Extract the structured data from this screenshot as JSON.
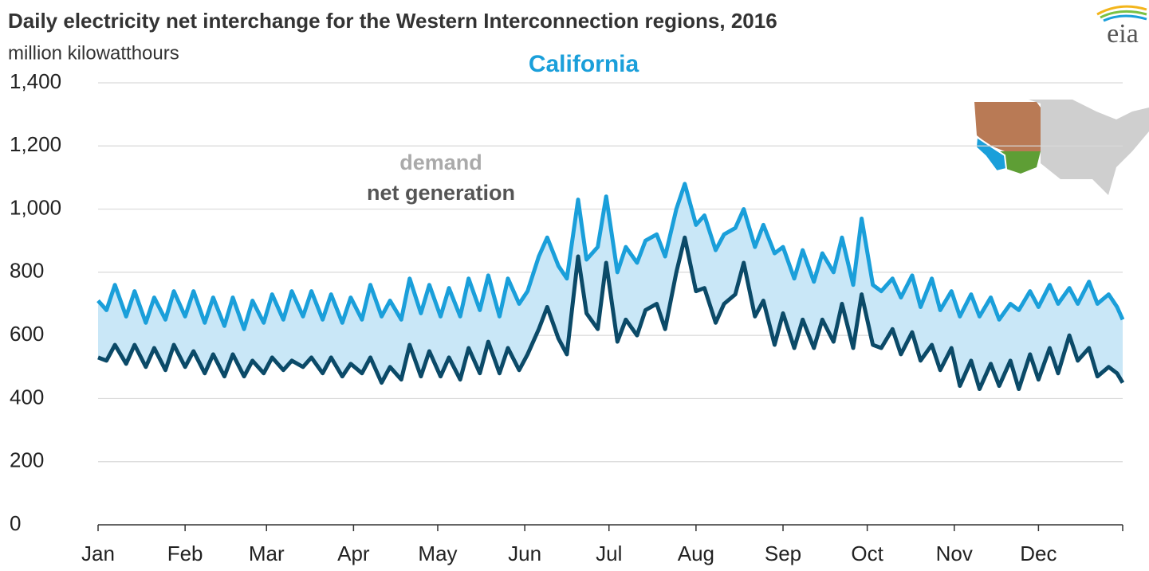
{
  "chart_data": {
    "type": "line",
    "title": "Daily electricity net interchange for the Western Interconnection regions, 2016",
    "subtitle": "million kilowatthours",
    "region": "California",
    "logo": "eia",
    "annotations": [
      "demand",
      "net generation"
    ],
    "x": [
      1,
      4,
      7,
      11,
      14,
      18,
      21,
      25,
      28,
      32,
      35,
      39,
      42,
      46,
      49,
      53,
      56,
      60,
      63,
      67,
      70,
      74,
      77,
      81,
      84,
      88,
      91,
      95,
      98,
      102,
      105,
      109,
      112,
      116,
      119,
      123,
      126,
      130,
      133,
      137,
      140,
      144,
      147,
      151,
      154,
      158,
      161,
      165,
      168,
      172,
      175,
      179,
      182,
      186,
      189,
      193,
      196,
      200,
      203,
      207,
      210,
      214,
      217,
      221,
      224,
      228,
      231,
      235,
      238,
      242,
      245,
      249,
      252,
      256,
      259,
      263,
      266,
      270,
      273,
      277,
      280,
      284,
      287,
      291,
      294,
      298,
      301,
      305,
      308,
      312,
      315,
      319,
      322,
      326,
      329,
      333,
      336,
      340,
      343,
      347,
      350,
      354,
      357,
      361,
      364,
      366
    ],
    "xlim": [
      1,
      366
    ],
    "xticks": [
      {
        "value": 1,
        "label": "Jan"
      },
      {
        "value": 32,
        "label": "Feb"
      },
      {
        "value": 61,
        "label": "Mar"
      },
      {
        "value": 92,
        "label": "Apr"
      },
      {
        "value": 122,
        "label": "May"
      },
      {
        "value": 153,
        "label": "Jun"
      },
      {
        "value": 183,
        "label": "Jul"
      },
      {
        "value": 214,
        "label": "Aug"
      },
      {
        "value": 245,
        "label": "Sep"
      },
      {
        "value": 275,
        "label": "Oct"
      },
      {
        "value": 306,
        "label": "Nov"
      },
      {
        "value": 336,
        "label": "Dec"
      },
      {
        "value": 366,
        "label": ""
      }
    ],
    "ylim": [
      0,
      1400
    ],
    "yticks": [
      0,
      200,
      400,
      600,
      800,
      {
        "value": 1000,
        "label": "1,000"
      },
      {
        "value": 1200,
        "label": "1,200"
      },
      {
        "value": 1400,
        "label": "1,400"
      }
    ],
    "grid": true,
    "fill_between": "#c9e7f7",
    "series": [
      {
        "name": "demand",
        "color": "#1a9fda",
        "values": [
          710,
          680,
          760,
          660,
          740,
          640,
          720,
          650,
          740,
          660,
          740,
          640,
          720,
          630,
          720,
          620,
          710,
          640,
          730,
          650,
          740,
          660,
          740,
          650,
          730,
          640,
          720,
          650,
          760,
          660,
          710,
          650,
          780,
          670,
          760,
          660,
          750,
          660,
          780,
          680,
          790,
          660,
          780,
          700,
          740,
          850,
          910,
          820,
          780,
          1030,
          840,
          880,
          1040,
          800,
          880,
          830,
          900,
          920,
          850,
          1000,
          1080,
          950,
          980,
          870,
          920,
          940,
          1000,
          880,
          950,
          860,
          880,
          780,
          870,
          770,
          860,
          800,
          910,
          760,
          970,
          760,
          740,
          780,
          720,
          790,
          690,
          780,
          680,
          740,
          660,
          730,
          660,
          720,
          650,
          700,
          680,
          740,
          690,
          760,
          700,
          750,
          700,
          770,
          700,
          730,
          690,
          650
        ]
      },
      {
        "name": "net generation",
        "color": "#0b4a68",
        "values": [
          530,
          520,
          570,
          510,
          570,
          500,
          560,
          490,
          570,
          500,
          550,
          480,
          540,
          470,
          540,
          470,
          520,
          480,
          530,
          490,
          520,
          500,
          530,
          480,
          530,
          470,
          510,
          480,
          530,
          450,
          500,
          460,
          570,
          470,
          550,
          470,
          530,
          460,
          560,
          480,
          580,
          480,
          560,
          490,
          540,
          620,
          690,
          590,
          540,
          850,
          670,
          620,
          830,
          580,
          650,
          600,
          680,
          700,
          620,
          800,
          910,
          740,
          750,
          640,
          700,
          730,
          830,
          660,
          710,
          570,
          670,
          560,
          650,
          560,
          650,
          580,
          700,
          560,
          730,
          570,
          560,
          620,
          540,
          610,
          520,
          570,
          490,
          560,
          440,
          520,
          430,
          510,
          440,
          520,
          430,
          540,
          460,
          560,
          480,
          600,
          520,
          560,
          470,
          500,
          480,
          450
        ]
      }
    ]
  }
}
